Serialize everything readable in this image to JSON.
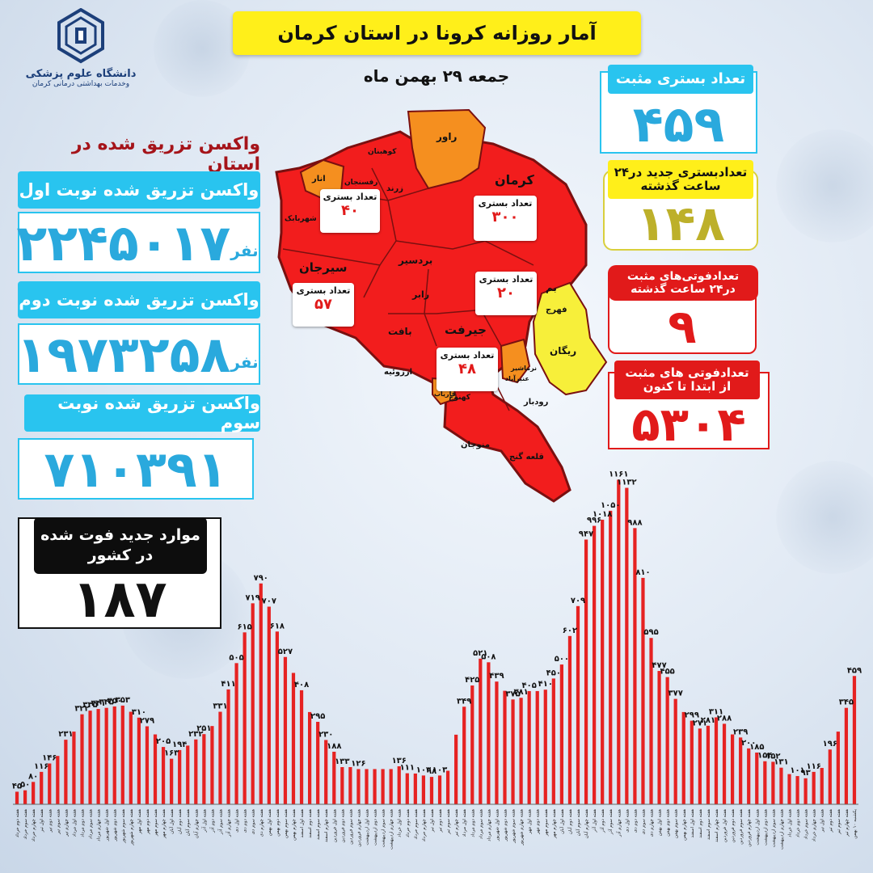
{
  "colors": {
    "accent_cyan": "#29c4ef",
    "title_yellow": "#ffef1a",
    "bar_red": "#e62222",
    "map_red": "#f21d1d",
    "map_orange": "#f58f1f",
    "map_yellow": "#f7ef3a",
    "olive": "#bdb02a",
    "dark_red": "#a5141a"
  },
  "logo": {
    "icon": "university-emblem-icon",
    "line1": "دانشگاه علوم پزشکی",
    "line2": "وخدمات بهداشتی درمانی کرمان"
  },
  "header": {
    "title": "آمار روزانه کرونا در استان کرمان",
    "date": "جمعه ۲۹ بهمن ماه"
  },
  "vaccine": {
    "heading": "واکسن تزریق شده در استان",
    "dose1": {
      "label": "واکسن تزریق شده نوبت اول",
      "value": "۲۲۴۵۰۱۷",
      "unit": "نفر"
    },
    "dose2": {
      "label": "واکسن تزریق شده نوبت دوم",
      "value": "۱۹۷۳۲۵۸",
      "unit": "نفر"
    },
    "dose3": {
      "label": "واکسن تزریق شده نوبت سوم",
      "value": "۷۱۰۳۹۱"
    }
  },
  "stats": {
    "hospitalized": {
      "label": "تعداد بستری مثبت",
      "value": "۴۵۹"
    },
    "new_hospitalized": {
      "label": "تعدادبستری جدید در۲۴ ساعت گذشته",
      "value": "۱۴۸"
    },
    "deaths_24h": {
      "label": "تعدادفوتی‌های مثبت در۲۴ ساعت گذشته",
      "value": "۹"
    },
    "deaths_total": {
      "label": "تعدادفوتی های مثبت از ابتدا تا کنون",
      "value": "۵۳۰۴"
    }
  },
  "national_deaths": {
    "label": "موارد جدید فوت شده در کشور",
    "value": "۱۸۷"
  },
  "map": {
    "cities": [
      "راور",
      "کرمان",
      "کوهبنان",
      "زرند",
      "انار",
      "رفسنجان",
      "شهربابک",
      "سیرجان",
      "بردسیر",
      "رابر",
      "بافت",
      "ارزوئیه",
      "جیرفت",
      "بم",
      "فهرج",
      "ریگان",
      "نرماشیر",
      "عنبرآباد",
      "فاریاب",
      "کهنوج",
      "رودبار",
      "منوجان",
      "قلعه گنج"
    ],
    "boxes": [
      {
        "label": "تعداد بستری",
        "value": "۴۰"
      },
      {
        "label": "تعداد بستری",
        "value": "۳۰۰"
      },
      {
        "label": "تعداد بستری",
        "value": "۵۷"
      },
      {
        "label": "تعداد بستری",
        "value": "۲۰"
      },
      {
        "label": "تعداد بستری",
        "value": "۴۸"
      }
    ]
  },
  "chart_data": {
    "type": "bar",
    "title": "",
    "xlabel": "",
    "ylabel": "",
    "ylim": [
      0,
      1200
    ],
    "grid": false,
    "values": [
      45,
      50,
      80,
      116,
      146,
      173,
      231,
      260,
      322,
      335,
      341,
      345,
      350,
      353,
      331,
      310,
      279,
      250,
      205,
      163,
      194,
      210,
      232,
      251,
      280,
      331,
      411,
      505,
      615,
      719,
      790,
      707,
      618,
      527,
      470,
      408,
      330,
      295,
      230,
      188,
      133,
      133,
      126,
      126,
      126,
      126,
      126,
      136,
      111,
      110,
      103,
      98,
      103,
      120,
      249,
      349,
      425,
      521,
      508,
      439,
      406,
      375,
      381,
      405,
      405,
      410,
      450,
      500,
      602,
      709,
      947,
      996,
      1018,
      1050,
      1161,
      1132,
      988,
      810,
      595,
      477,
      455,
      377,
      330,
      299,
      271,
      281,
      311,
      288,
      250,
      239,
      200,
      185,
      154,
      152,
      131,
      108,
      101,
      93,
      116,
      130,
      196,
      260,
      345,
      459
    ],
    "data_labels": [
      {
        "i": 0,
        "text": "۴۵"
      },
      {
        "i": 1,
        "text": "۵۰"
      },
      {
        "i": 2,
        "text": "۸۰"
      },
      {
        "i": 3,
        "text": "۱۱۶"
      },
      {
        "i": 4,
        "text": "۱۴۶"
      },
      {
        "i": 6,
        "text": "۲۳۱"
      },
      {
        "i": 8,
        "text": "۳۲۲"
      },
      {
        "i": 9,
        "text": "۳۳۵"
      },
      {
        "i": 10,
        "text": "۳۴۱"
      },
      {
        "i": 11,
        "text": "۳۴۵"
      },
      {
        "i": 12,
        "text": "۳۵۰"
      },
      {
        "i": 13,
        "text": "۳۵۳"
      },
      {
        "i": 15,
        "text": "۳۱۰"
      },
      {
        "i": 16,
        "text": "۲۷۹"
      },
      {
        "i": 18,
        "text": "۲۰۵"
      },
      {
        "i": 19,
        "text": "۱۶۳"
      },
      {
        "i": 20,
        "text": "۱۹۴"
      },
      {
        "i": 22,
        "text": "۲۳۲"
      },
      {
        "i": 23,
        "text": "۲۵۱"
      },
      {
        "i": 25,
        "text": "۳۳۱"
      },
      {
        "i": 26,
        "text": "۴۱۱"
      },
      {
        "i": 27,
        "text": "۵۰۵"
      },
      {
        "i": 28,
        "text": "۶۱۵"
      },
      {
        "i": 29,
        "text": "۷۱۹"
      },
      {
        "i": 30,
        "text": "۷۹۰"
      },
      {
        "i": 31,
        "text": "۷۰۷"
      },
      {
        "i": 32,
        "text": "۶۱۸"
      },
      {
        "i": 33,
        "text": "۵۲۷"
      },
      {
        "i": 35,
        "text": "۴۰۸"
      },
      {
        "i": 37,
        "text": "۲۹۵"
      },
      {
        "i": 38,
        "text": "۲۳۰"
      },
      {
        "i": 39,
        "text": "۱۸۸"
      },
      {
        "i": 40,
        "text": "۱۳۳"
      },
      {
        "i": 42,
        "text": "۱۲۶"
      },
      {
        "i": 47,
        "text": "۱۳۶"
      },
      {
        "i": 48,
        "text": "۱۱۱"
      },
      {
        "i": 50,
        "text": "۱۰۳"
      },
      {
        "i": 51,
        "text": "۹۸"
      },
      {
        "i": 52,
        "text": "۱۰۳"
      },
      {
        "i": 55,
        "text": "۳۴۹"
      },
      {
        "i": 56,
        "text": "۴۲۵"
      },
      {
        "i": 57,
        "text": "۵۲۱"
      },
      {
        "i": 58,
        "text": "۵۰۸"
      },
      {
        "i": 59,
        "text": "۴۳۹"
      },
      {
        "i": 61,
        "text": "۳۷۵"
      },
      {
        "i": 62,
        "text": "۳۸۱"
      },
      {
        "i": 63,
        "text": "۴۰۵"
      },
      {
        "i": 65,
        "text": "۴۱۰"
      },
      {
        "i": 66,
        "text": "۴۵۰"
      },
      {
        "i": 67,
        "text": "۵۰۰"
      },
      {
        "i": 68,
        "text": "۶۰۲"
      },
      {
        "i": 69,
        "text": "۷۰۹"
      },
      {
        "i": 70,
        "text": "۹۴۷"
      },
      {
        "i": 71,
        "text": "۹۹۶"
      },
      {
        "i": 72,
        "text": "۱۰۱۸"
      },
      {
        "i": 73,
        "text": "۱۰۵۰"
      },
      {
        "i": 74,
        "text": "۱۱۶۱"
      },
      {
        "i": 75,
        "text": "۱۱۳۲"
      },
      {
        "i": 76,
        "text": "۹۸۸"
      },
      {
        "i": 77,
        "text": "۸۱۰"
      },
      {
        "i": 78,
        "text": "۵۹۵"
      },
      {
        "i": 79,
        "text": "۴۷۷"
      },
      {
        "i": 80,
        "text": "۴۵۵"
      },
      {
        "i": 81,
        "text": "۳۷۷"
      },
      {
        "i": 83,
        "text": "۲۹۹"
      },
      {
        "i": 84,
        "text": "۲۷۱"
      },
      {
        "i": 85,
        "text": "۲۸۱"
      },
      {
        "i": 86,
        "text": "۳۱۱"
      },
      {
        "i": 87,
        "text": "۲۸۸"
      },
      {
        "i": 89,
        "text": "۲۳۹"
      },
      {
        "i": 90,
        "text": "۲۰۰"
      },
      {
        "i": 91,
        "text": "۱۸۵"
      },
      {
        "i": 92,
        "text": "۱۵۴"
      },
      {
        "i": 93,
        "text": "۱۵۲"
      },
      {
        "i": 94,
        "text": "۱۳۱"
      },
      {
        "i": 96,
        "text": "۱۰۱"
      },
      {
        "i": 97,
        "text": "۹۳"
      },
      {
        "i": 98,
        "text": "۱۱۶"
      },
      {
        "i": 100,
        "text": "۱۹۶"
      },
      {
        "i": 102,
        "text": "۳۴۵"
      },
      {
        "i": 103,
        "text": "۴۵۹"
      }
    ],
    "categories": [
      "هفته دوم خرداد",
      "هفته سوم خرداد",
      "هفته چهارم خرداد",
      "هفته اول تیر",
      "هفته دوم تیر",
      "هفته سوم تیر",
      "هفته چهارم تیر",
      "هفته اول مرداد",
      "هفته دوم مرداد",
      "هفته سوم مرداد",
      "هفته چهارم مرداد",
      "هفته اول شهریور",
      "هفته دوم شهریور",
      "هفته سوم شهریور",
      "هفته چهارم شهریور",
      "هفته اول مهر",
      "هفته دوم مهر",
      "هفته سوم مهر",
      "هفته چهارم مهر",
      "هفته اول آبان",
      "هفته دوم آبان",
      "هفته سوم آبان",
      "هفته چهارم آبان",
      "هفته اول آذر",
      "هفته دوم آذر",
      "هفته سوم آذر",
      "هفته چهارم آذر",
      "هفته اول دی",
      "هفته دوم دی",
      "هفته سوم دی",
      "هفته چهارم دی",
      "هفته اول بهمن",
      "هفته دوم بهمن",
      "هفته سوم بهمن",
      "هفته چهارم بهمن",
      "هفته اول اسفند",
      "هفته دوم اسفند",
      "هفته سوم اسفند",
      "هفته چهارم اسفند",
      "هفته اول فروردین",
      "هفته دوم فروردین",
      "هفته سوم فروردین",
      "هفته چهارم فروردین",
      "هفته اول اردیبهشت",
      "هفته دوم اردیبهشت",
      "هفته سوم اردیبهشت",
      "هفته چهارم اردیبهشت",
      "هفته اول خرداد",
      "هفته دوم خرداد",
      "هفته سوم خرداد",
      "هفته چهارم خرداد",
      "هفته اول تیر",
      "هفته دوم تیر",
      "هفته سوم تیر",
      "هفته چهارم تیر",
      "هفته اول مرداد",
      "هفته دوم مرداد",
      "هفته سوم مرداد",
      "هفته چهارم مرداد",
      "هفته اول شهریور",
      "هفته دوم شهریور",
      "هفته سوم شهریور",
      "هفته چهارم شهریور",
      "هفته اول مهر",
      "هفته دوم مهر",
      "هفته سوم مهر",
      "هفته چهارم مهر",
      "هفته اول آبان",
      "هفته دوم آبان",
      "هفته سوم آبان",
      "هفته چهارم آبان",
      "هفته اول آذر",
      "هفته دوم آذر",
      "هفته سوم آذر",
      "هفته چهارم آذر",
      "هفته اول دی",
      "هفته دوم دی",
      "هفته سوم دی",
      "هفته چهارم دی",
      "هفته اول بهمن",
      "هفته دوم بهمن",
      "هفته سوم بهمن",
      "هفته چهارم بهمن",
      "هفته اول اسفند",
      "هفته دوم اسفند",
      "هفته سوم اسفند",
      "هفته چهارم اسفند",
      "هفته اول فروردین",
      "هفته دوم فروردین",
      "هفته سوم فروردین",
      "هفته چهارم فروردین",
      "هفته اول اردیبهشت",
      "هفته دوم اردیبهشت",
      "هفته سوم اردیبهشت",
      "هفته چهارم اردیبهشت",
      "هفته اول خرداد",
      "هفته دوم خرداد",
      "هفته سوم خرداد",
      "هفته چهارم خرداد",
      "هفته اول تیر",
      "هفته دوم تیر",
      "هفته سوم تیر",
      "هفته چهارم تیر",
      "یکشنبه ۱۰ بهمن"
    ]
  }
}
